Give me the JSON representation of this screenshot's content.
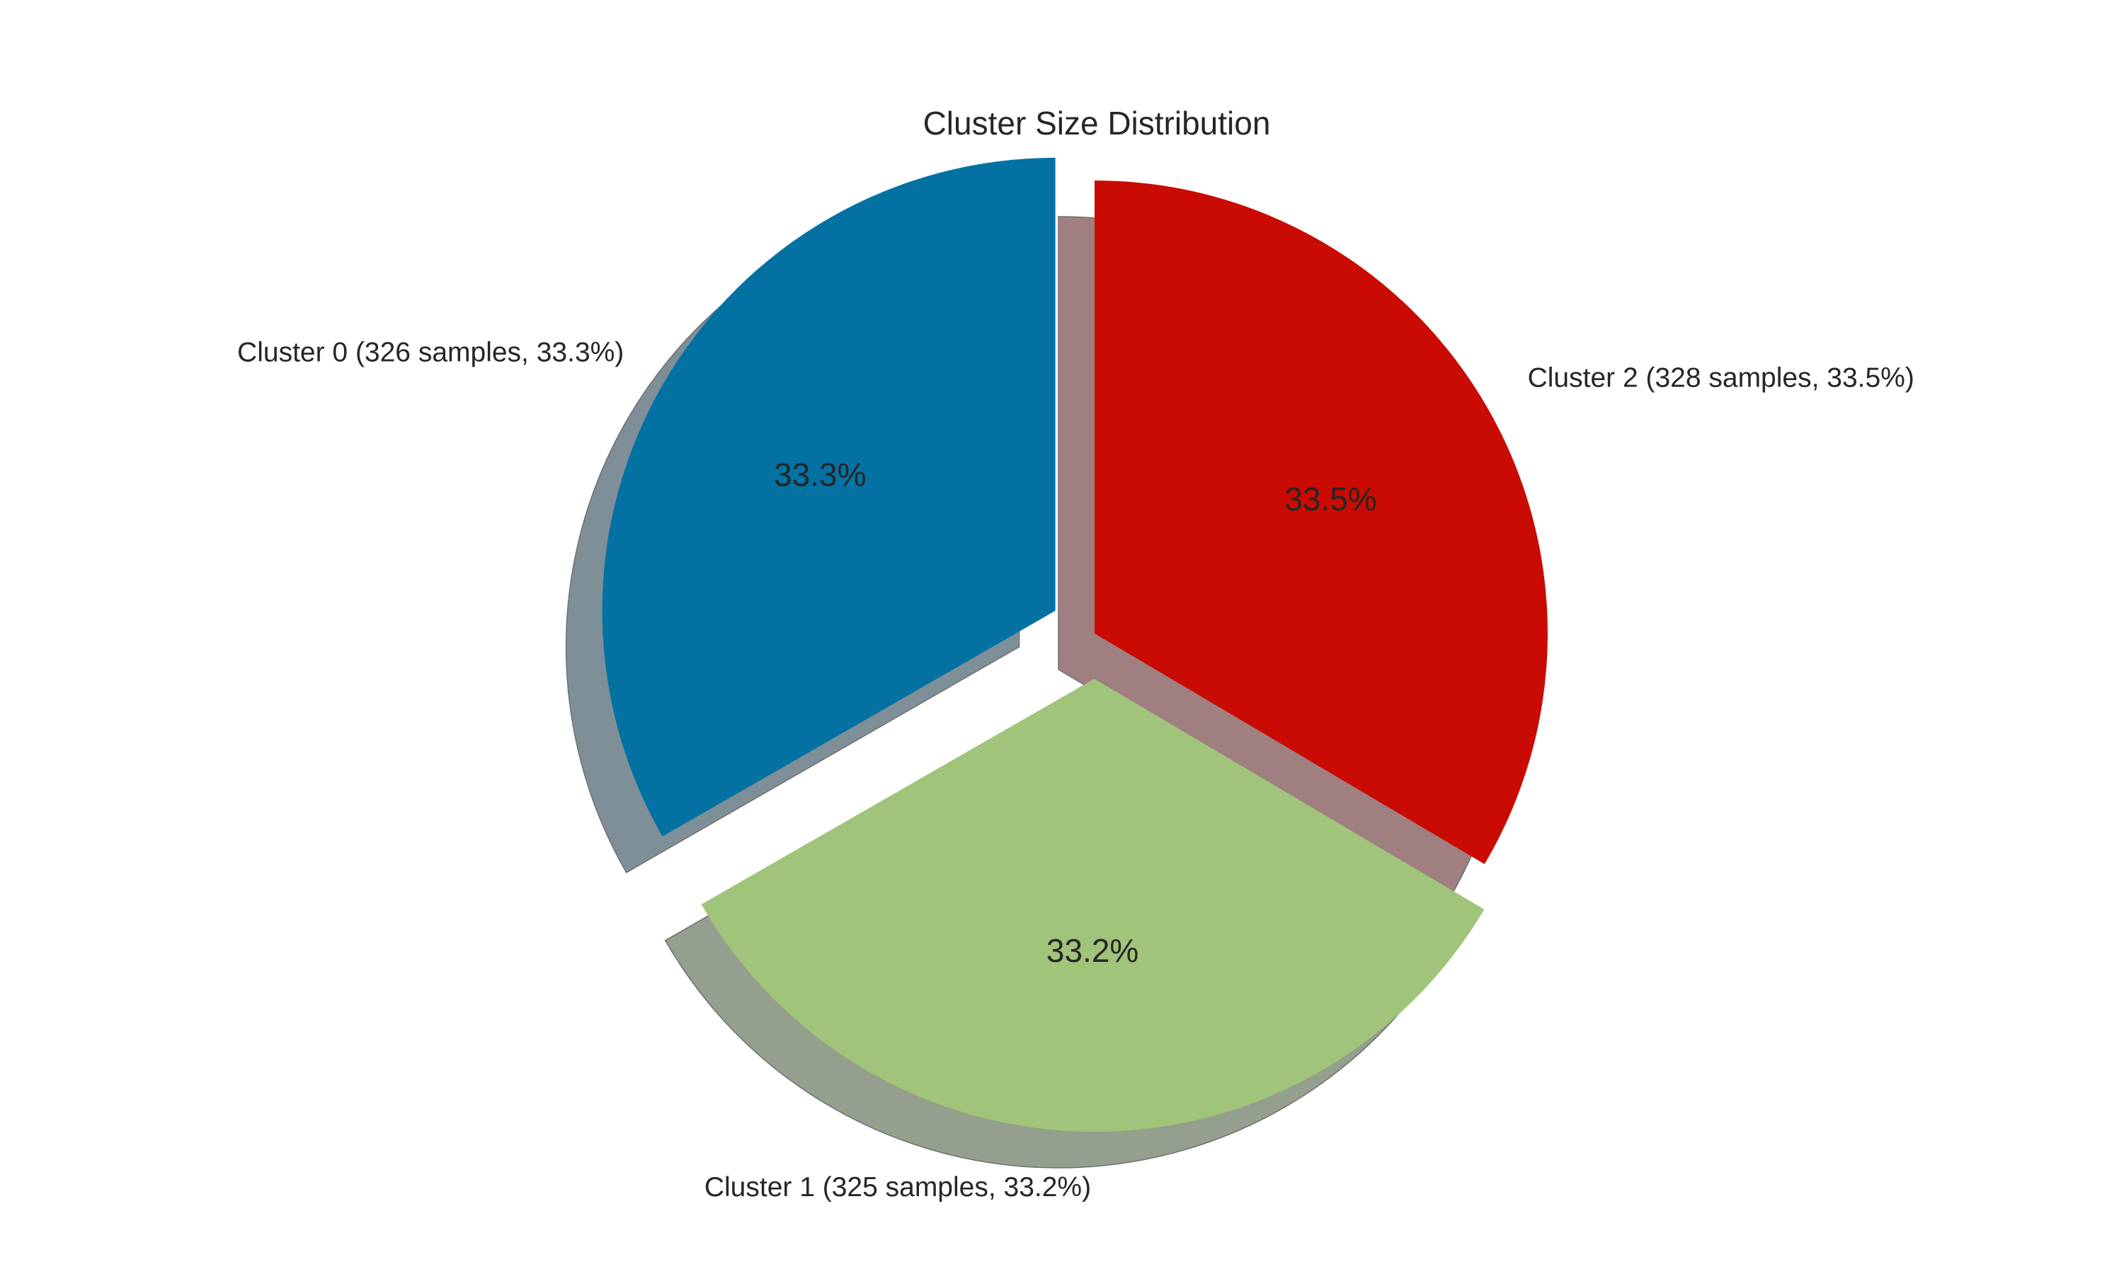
{
  "chart_data": {
    "type": "pie",
    "title": "Cluster Size Distribution",
    "slices": [
      {
        "label": "Cluster 0 (326 samples, 33.3%)",
        "value": 326,
        "pct_label": "33.3%",
        "color": "#0372a3",
        "shadow_color": "#7e8f98",
        "exploded": true
      },
      {
        "label": "Cluster 1 (325 samples, 33.2%)",
        "value": 325,
        "pct_label": "33.2%",
        "color": "#a0c479",
        "shadow_color": "#959f8d",
        "exploded": true
      },
      {
        "label": "Cluster 2 (328 samples, 33.5%)",
        "value": 328,
        "pct_label": "33.5%",
        "color": "#c90b03",
        "shadow_color": "#a07f80",
        "exploded": false
      }
    ],
    "start_angle": 90,
    "direction": "counterclockwise",
    "shadow": true
  }
}
